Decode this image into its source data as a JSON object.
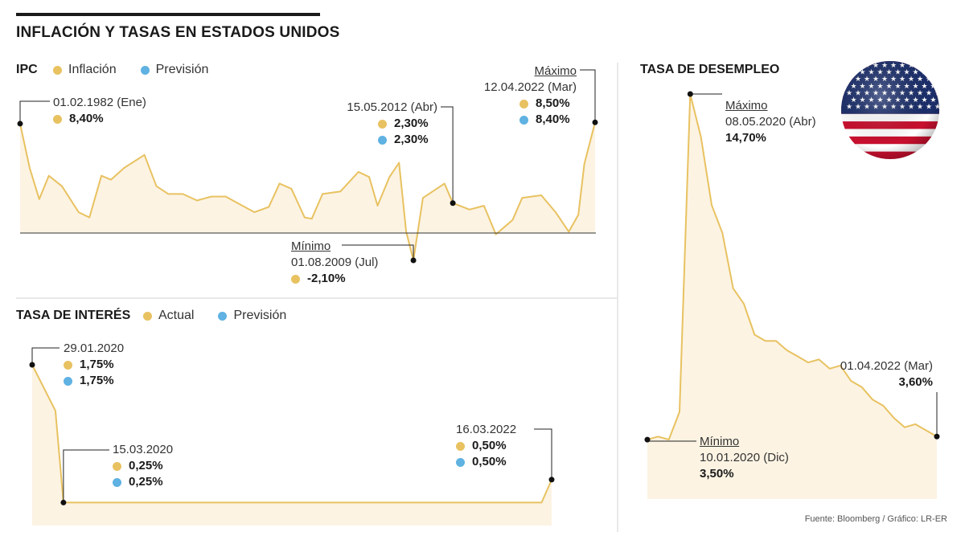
{
  "title": "INFLACIÓN Y TASAS EN ESTADOS UNIDOS",
  "source": "Fuente: Bloomberg / Gráfico: LR-ER",
  "colors": {
    "actual": "#e8c261",
    "forecast": "#5fb2e2",
    "fill": "#fcf3e3",
    "line": "#e8c261"
  },
  "flag_icon": "us-flag-icon",
  "ipc": {
    "title": "IPC",
    "legend": [
      "Inflación",
      "Previsión"
    ],
    "annotations": {
      "start": {
        "date": "01.02.1982 (Ene)",
        "inflacion": "8,40%"
      },
      "mid": {
        "date": "15.05.2012 (Abr)",
        "inflacion": "2,30%",
        "prevision": "2,30%"
      },
      "max": {
        "label": "Máximo",
        "date": "12.04.2022 (Mar)",
        "inflacion": "8,50%",
        "prevision": "8,40%"
      },
      "min": {
        "label": "Mínimo",
        "date": "01.08.2009 (Jul)",
        "inflacion": "-2,10%"
      }
    }
  },
  "interes": {
    "title": "TASA DE INTERÉS",
    "legend": [
      "Actual",
      "Previsión"
    ],
    "annotations": {
      "a": {
        "date": "29.01.2020",
        "actual": "1,75%",
        "prevision": "1,75%"
      },
      "b": {
        "date": "15.03.2020",
        "actual": "0,25%",
        "prevision": "0,25%"
      },
      "c": {
        "date": "16.03.2022",
        "actual": "0,50%",
        "prevision": "0,50%"
      }
    }
  },
  "desempleo": {
    "title": "TASA DE DESEMPLEO",
    "annotations": {
      "max": {
        "label": "Máximo",
        "date": "08.05.2020 (Abr)",
        "value": "14,70%"
      },
      "min": {
        "label": "Mínimo",
        "date": "10.01.2020 (Dic)",
        "value": "3,50%"
      },
      "end": {
        "date": "01.04.2022 (Mar)",
        "value": "3,60%"
      }
    }
  },
  "chart_data": [
    {
      "type": "area",
      "name": "IPC",
      "title": "IPC",
      "x_range": [
        "1982-02",
        "2022-03"
      ],
      "series": [
        {
          "name": "Inflación",
          "x": [
            "1982-02",
            "1982-10",
            "1983-06",
            "1984-02",
            "1985-01",
            "1986-03",
            "1986-12",
            "1987-10",
            "1988-06",
            "1989-05",
            "1990-10",
            "1991-08",
            "1992-06",
            "1993-06",
            "1994-06",
            "1995-06",
            "1996-06",
            "1997-06",
            "1998-06",
            "1999-06",
            "2000-03",
            "2001-01",
            "2001-12",
            "2002-06",
            "2003-03",
            "2004-06",
            "2005-09",
            "2006-06",
            "2007-01",
            "2007-11",
            "2008-07",
            "2009-01",
            "2009-07",
            "2010-03",
            "2011-09",
            "2012-04",
            "2013-06",
            "2014-06",
            "2015-04",
            "2016-06",
            "2017-02",
            "2018-06",
            "2019-06",
            "2020-05",
            "2021-01",
            "2021-06",
            "2022-03"
          ],
          "values": [
            8.4,
            5.0,
            2.6,
            4.4,
            3.6,
            1.6,
            1.2,
            4.4,
            4.1,
            5.0,
            6.0,
            3.6,
            3.0,
            3.0,
            2.5,
            2.8,
            2.8,
            2.2,
            1.6,
            2.0,
            3.8,
            3.4,
            1.2,
            1.1,
            3.0,
            3.2,
            4.7,
            4.3,
            2.1,
            4.3,
            5.4,
            0.1,
            -2.1,
            2.7,
            3.8,
            2.3,
            1.8,
            2.1,
            -0.1,
            1.0,
            2.7,
            2.9,
            1.6,
            0.1,
            1.4,
            5.3,
            8.5
          ]
        },
        {
          "name": "Previsión",
          "x": [
            "2012-04",
            "2022-03"
          ],
          "values": [
            2.3,
            8.4
          ]
        }
      ]
    },
    {
      "type": "area",
      "name": "Tasa de interés",
      "title": "TASA DE INTERÉS",
      "series": [
        {
          "name": "Actual",
          "x": [
            "2020-01-29",
            "2020-03-03",
            "2020-03-15",
            "2022-03-01",
            "2022-03-16"
          ],
          "values": [
            1.75,
            1.25,
            0.25,
            0.25,
            0.5
          ]
        },
        {
          "name": "Previsión",
          "x": [
            "2020-01-29",
            "2020-03-15",
            "2022-03-16"
          ],
          "values": [
            1.75,
            0.25,
            0.5
          ]
        }
      ]
    },
    {
      "type": "area",
      "name": "Tasa de desempleo",
      "title": "TASA DE DESEMPLEO",
      "series": [
        {
          "name": "Desempleo",
          "x": [
            "2019-12",
            "2020-01",
            "2020-02",
            "2020-03",
            "2020-04",
            "2020-05",
            "2020-06",
            "2020-07",
            "2020-08",
            "2020-09",
            "2020-10",
            "2020-11",
            "2020-12",
            "2021-01",
            "2021-02",
            "2021-03",
            "2021-04",
            "2021-05",
            "2021-06",
            "2021-07",
            "2021-08",
            "2021-09",
            "2021-10",
            "2021-11",
            "2021-12",
            "2022-01",
            "2022-02",
            "2022-03"
          ],
          "values": [
            3.5,
            3.6,
            3.5,
            4.4,
            14.7,
            13.3,
            11.1,
            10.2,
            8.4,
            7.9,
            6.9,
            6.7,
            6.7,
            6.4,
            6.2,
            6.0,
            6.1,
            5.8,
            5.9,
            5.4,
            5.2,
            4.8,
            4.6,
            4.2,
            3.9,
            4.0,
            3.8,
            3.6
          ]
        }
      ]
    }
  ]
}
